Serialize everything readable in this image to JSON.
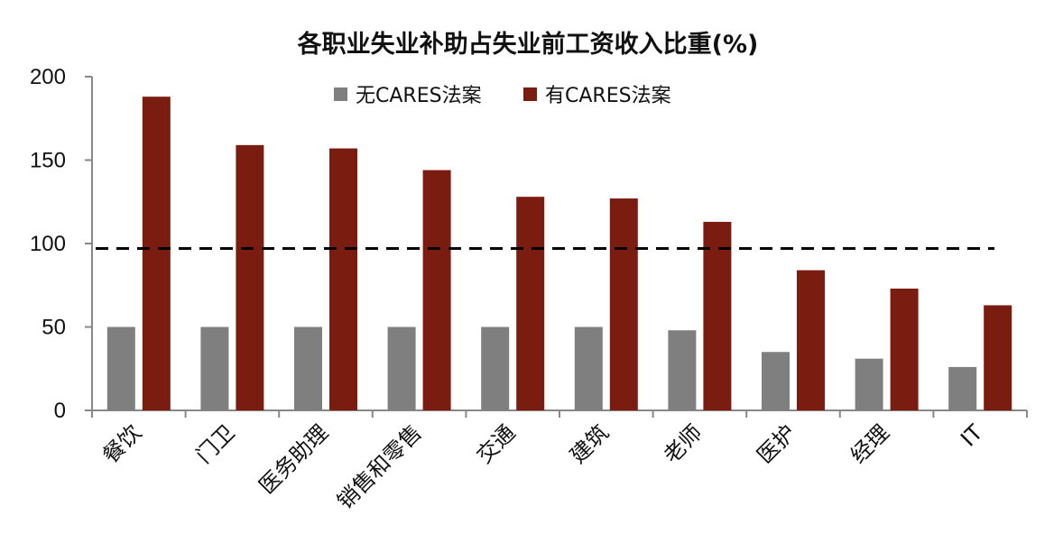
{
  "chart_data": {
    "type": "bar",
    "title": "各职业失业补助占失业前工资收入比重(%)",
    "categories": [
      "餐饮",
      "门卫",
      "医务助理",
      "销售和零售",
      "交通",
      "建筑",
      "老师",
      "医护",
      "经理",
      "IT"
    ],
    "series": [
      {
        "name": "无CARES法案",
        "color": "#7f7f7f",
        "values": [
          50,
          50,
          50,
          50,
          50,
          50,
          48,
          35,
          31,
          26
        ]
      },
      {
        "name": "有CARES法案",
        "color": "#7b1c10",
        "values": [
          188,
          159,
          157,
          144,
          128,
          127,
          113,
          84,
          73,
          63
        ]
      }
    ],
    "ylim": [
      0,
      200
    ],
    "yticks": [
      0,
      50,
      100,
      150,
      200
    ],
    "reference_line": {
      "value": 97,
      "style": "dashed",
      "color": "#000000"
    },
    "xlabel": "",
    "ylabel": "",
    "grid": false,
    "legend_position": "top-center"
  }
}
